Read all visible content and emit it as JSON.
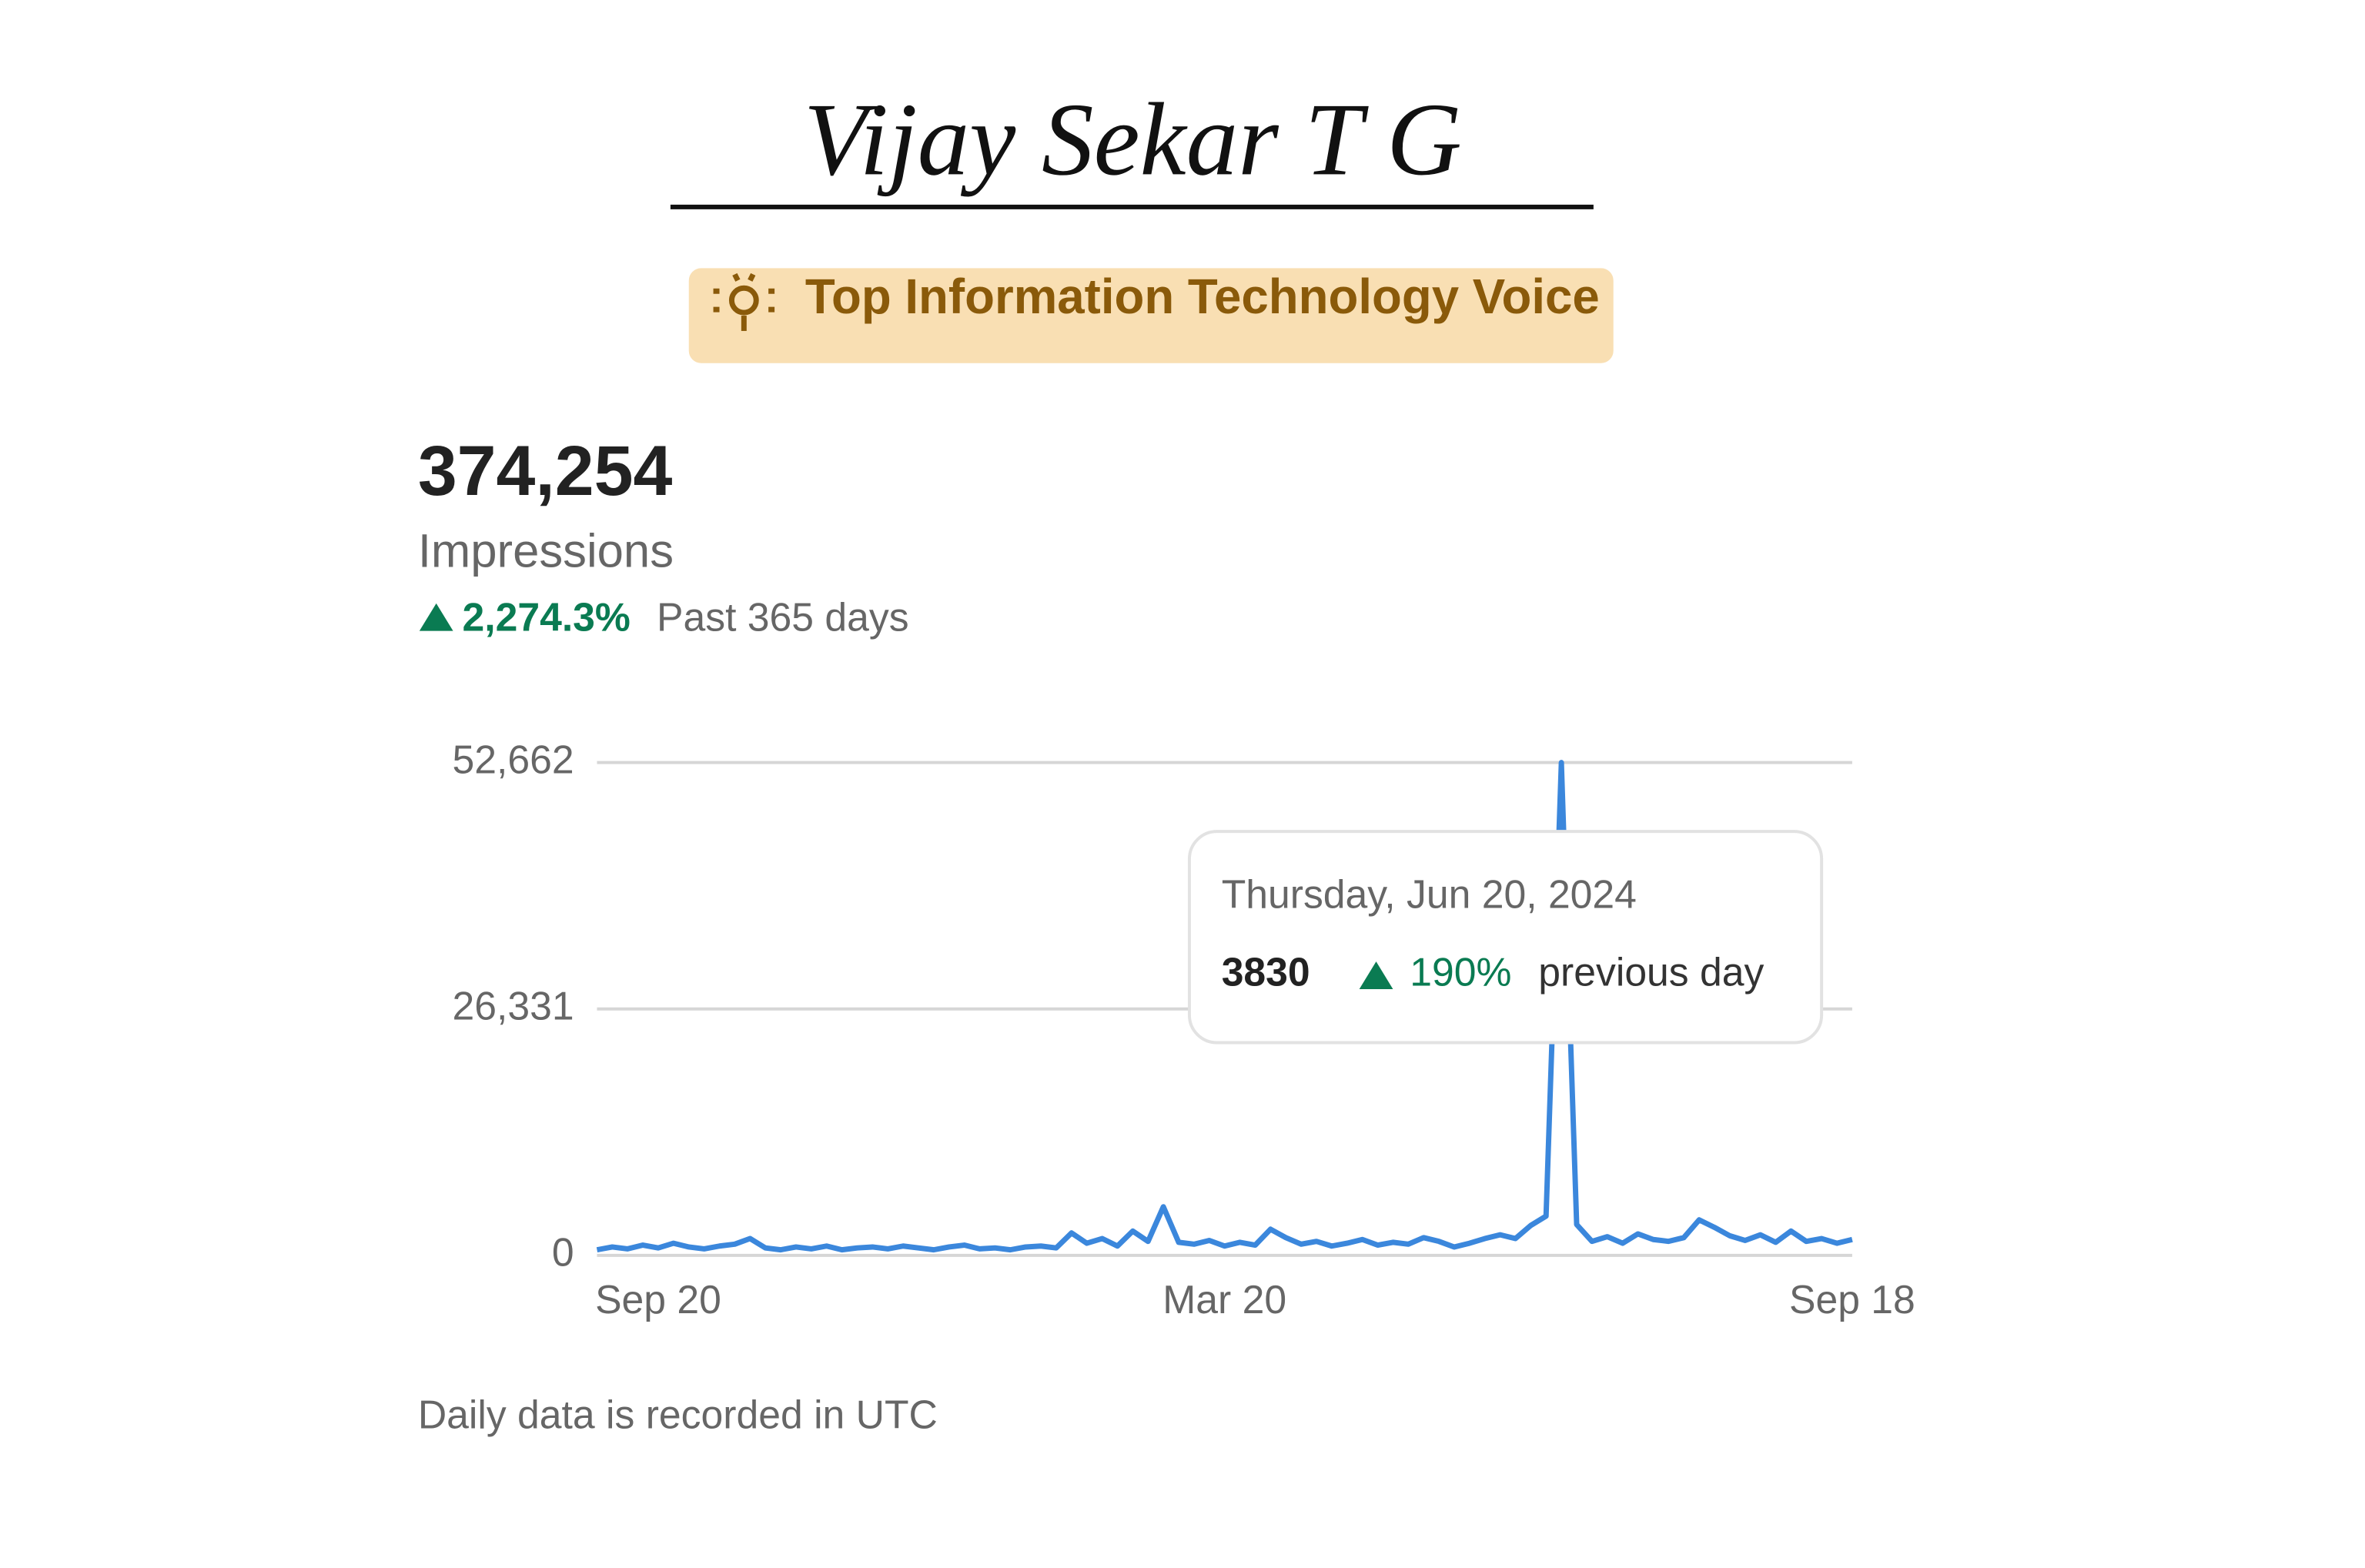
{
  "header": {
    "name": "Vijay Sekar T G",
    "badge": "Top Information Technology Voice"
  },
  "metric": {
    "value": "374,254",
    "label": "Impressions",
    "change": "2,274.3%",
    "period": "Past 365 days"
  },
  "chart_data": {
    "type": "line",
    "categories": [
      null,
      null,
      null,
      null,
      "Sep 20",
      null,
      null,
      null,
      null,
      null,
      null,
      null,
      null,
      null,
      null,
      null,
      null,
      null,
      null,
      null,
      null,
      null,
      null,
      null,
      null,
      null,
      null,
      null,
      null,
      null,
      null,
      null,
      null,
      null,
      null,
      null,
      null,
      null,
      null,
      null,
      null,
      "Mar 20",
      null,
      null,
      null,
      null,
      null,
      null,
      null,
      null,
      null,
      null,
      null,
      null,
      null,
      null,
      null,
      null,
      null,
      null,
      null,
      null,
      null,
      null,
      null,
      null,
      null,
      null,
      null,
      null,
      null,
      null,
      null,
      null,
      null,
      null,
      null,
      null,
      null,
      null,
      null,
      null,
      "Sep 18"
    ],
    "series": [
      {
        "name": "Impressions",
        "color": "#3b87dc",
        "values": [
          600,
          900,
          700,
          1100,
          800,
          1300,
          900,
          700,
          1000,
          1200,
          1800,
          800,
          600,
          900,
          700,
          1000,
          600,
          800,
          900,
          700,
          1000,
          800,
          600,
          900,
          1100,
          700,
          800,
          600,
          900,
          1000,
          800,
          2400,
          1300,
          1800,
          1000,
          2600,
          1500,
          5200,
          1400,
          1200,
          1600,
          1000,
          1400,
          1100,
          2800,
          1900,
          1200,
          1500,
          1000,
          1300,
          1700,
          1100,
          1400,
          1200,
          1900,
          1500,
          900,
          1300,
          1800,
          2200,
          1800,
          3200,
          4200,
          52662,
          3300,
          1500,
          2000,
          1300,
          2300,
          1700,
          1500,
          1900,
          3800,
          3000,
          2100,
          1600,
          2200,
          1400,
          2600,
          1500,
          1800,
          1300,
          1700
        ]
      }
    ],
    "ylim": [
      0,
      52662
    ],
    "yticks": [
      0,
      {
        "value": 26331,
        "label": "26,331"
      },
      {
        "value": 52662,
        "label": "52,662"
      }
    ],
    "grid": true
  },
  "tooltip": {
    "date": "Thursday, Jun 20, 2024",
    "value": "3830",
    "change": "190%",
    "label": "previous day"
  },
  "footnote": "Daily data is recorded in UTC"
}
